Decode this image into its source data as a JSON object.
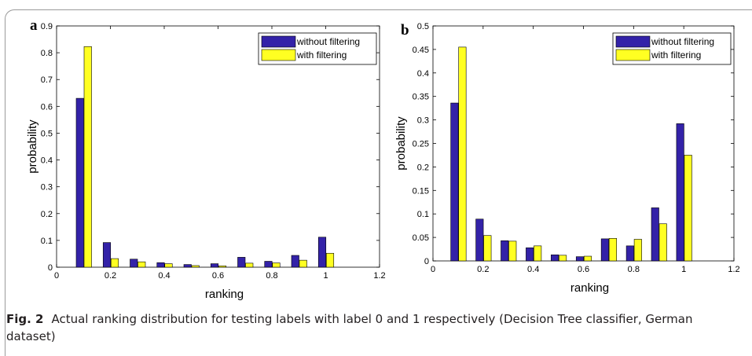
{
  "caption": {
    "label": "Fig. 2",
    "text": "Actual ranking distribution for testing labels with label 0 and 1 respectively (Decision Tree classifier, German dataset)"
  },
  "colors": {
    "series_without": "#3322a8",
    "series_with": "#ffff22",
    "bar_stroke": "#000000"
  },
  "chart_data": [
    {
      "panel_label": "a",
      "type": "bar",
      "xlabel": "ranking",
      "ylabel": "probability",
      "xlim": [
        0,
        1.2
      ],
      "ylim": [
        0,
        0.9
      ],
      "xticks": [
        "0",
        "0.2",
        "0.4",
        "0.6",
        "0.8",
        "1",
        "1.2"
      ],
      "yticks": [
        "0",
        "0.1",
        "0.2",
        "0.3",
        "0.4",
        "0.5",
        "0.6",
        "0.7",
        "0.8",
        "0.9"
      ],
      "x": [
        0.1,
        0.2,
        0.3,
        0.4,
        0.5,
        0.6,
        0.7,
        0.8,
        0.9,
        1.0
      ],
      "legend_position": "top-right",
      "series": [
        {
          "name": "without filtering",
          "values": [
            0.63,
            0.092,
            0.03,
            0.017,
            0.01,
            0.013,
            0.037,
            0.022,
            0.044,
            0.112
          ]
        },
        {
          "name": "with filtering",
          "values": [
            0.823,
            0.032,
            0.02,
            0.013,
            0.006,
            0.005,
            0.015,
            0.016,
            0.026,
            0.052
          ]
        }
      ]
    },
    {
      "panel_label": "b",
      "type": "bar",
      "xlabel": "ranking",
      "ylabel": "probability",
      "xlim": [
        0,
        1.2
      ],
      "ylim": [
        0,
        0.5
      ],
      "xticks": [
        "0",
        "0.2",
        "0.4",
        "0.6",
        "0.8",
        "1",
        "1.2"
      ],
      "yticks": [
        "0",
        "0.05",
        "0.1",
        "0.15",
        "0.2",
        "0.25",
        "0.3",
        "0.35",
        "0.4",
        "0.45",
        "0.5"
      ],
      "x": [
        0.1,
        0.2,
        0.3,
        0.4,
        0.5,
        0.6,
        0.7,
        0.8,
        0.9,
        1.0
      ],
      "legend_position": "top-right",
      "series": [
        {
          "name": "without filtering",
          "values": [
            0.336,
            0.089,
            0.043,
            0.028,
            0.013,
            0.009,
            0.047,
            0.032,
            0.113,
            0.292
          ]
        },
        {
          "name": "with filtering",
          "values": [
            0.455,
            0.054,
            0.042,
            0.032,
            0.012,
            0.01,
            0.048,
            0.046,
            0.079,
            0.225
          ]
        }
      ]
    }
  ]
}
